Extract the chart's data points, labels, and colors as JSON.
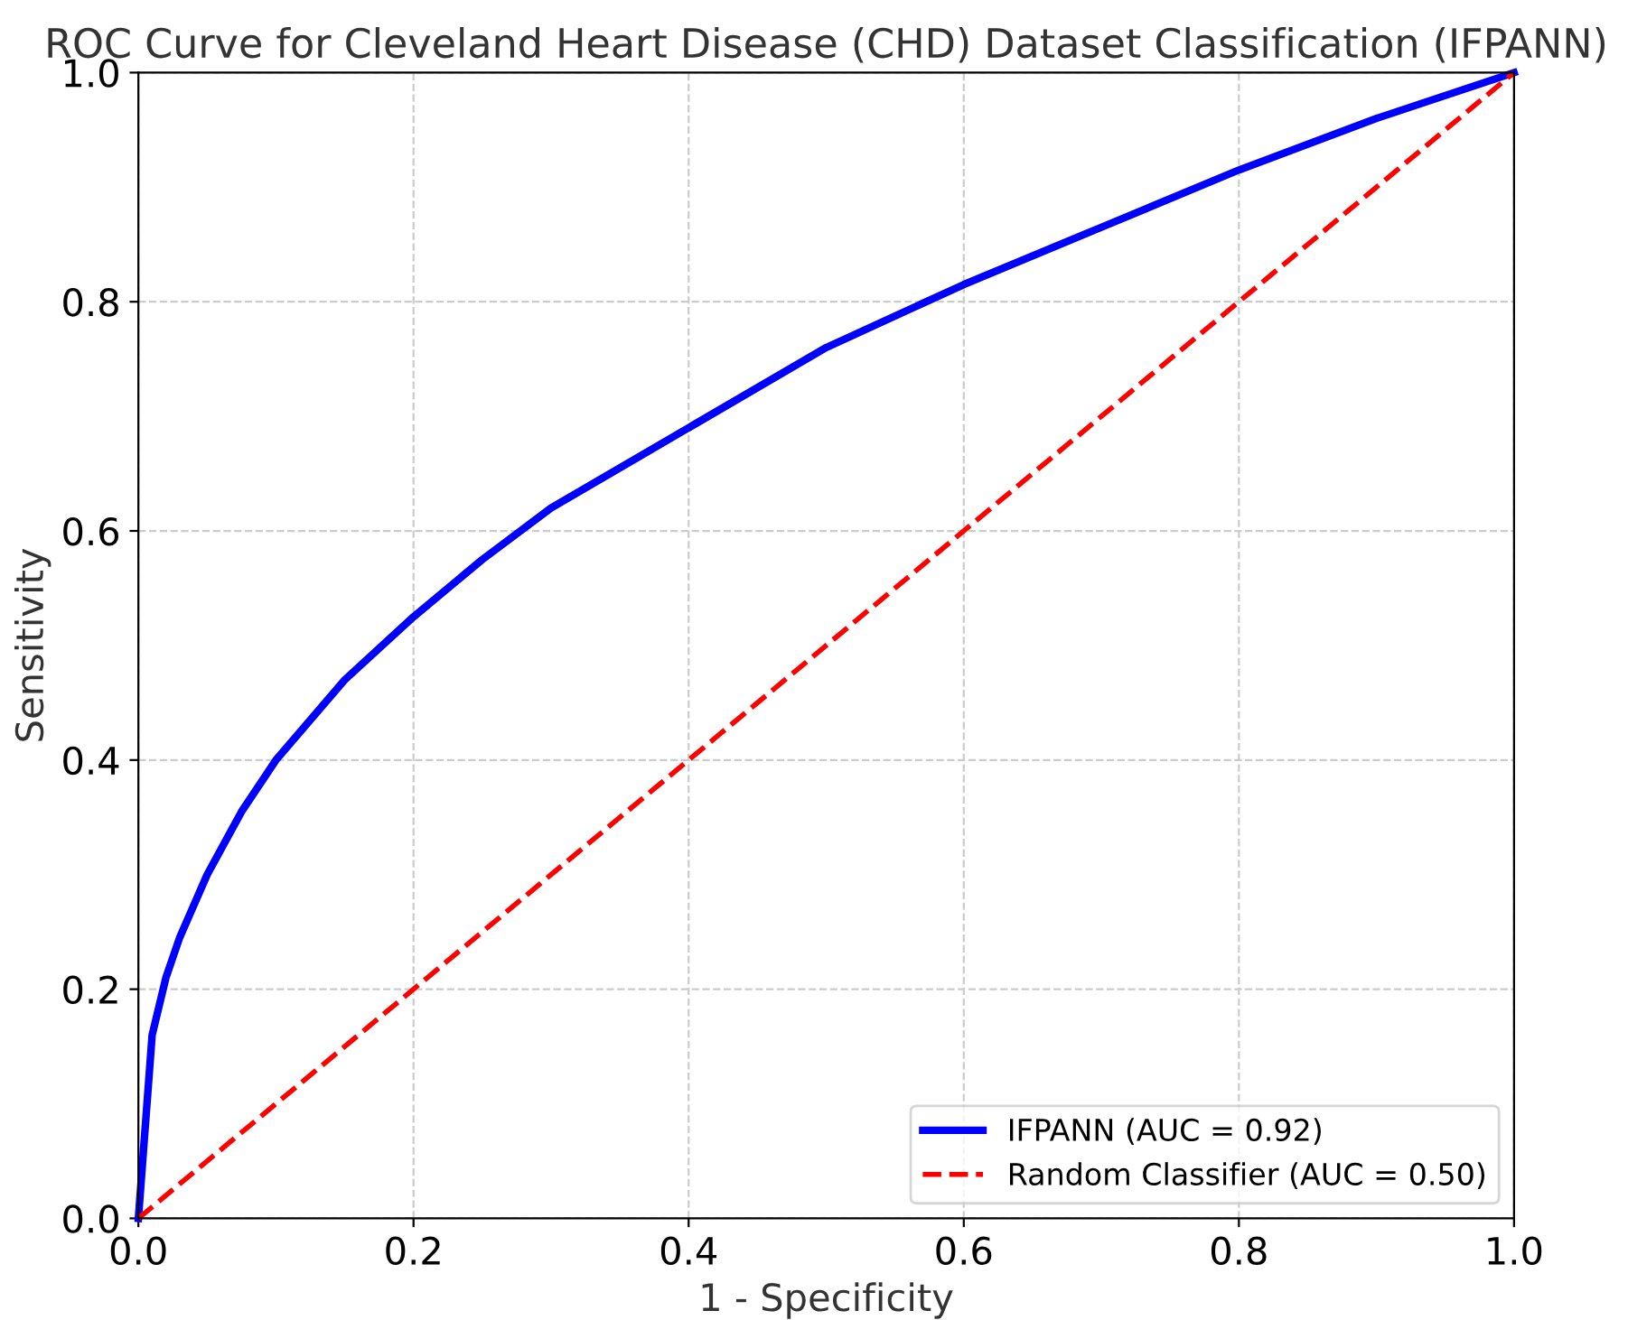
{
  "chart_data": {
    "type": "line",
    "title": "ROC Curve for Cleveland Heart Disease (CHD) Dataset Classification (IFPANN)",
    "xlabel": "1 - Specificity",
    "ylabel": "Sensitivity",
    "series": [
      {
        "name": "IFPANN (AUC = 0.92)",
        "color": "#0000ff",
        "line_style": "solid",
        "x": [
          0,
          0.01,
          0.02,
          0.03,
          0.05,
          0.075,
          0.1,
          0.15,
          0.2,
          0.25,
          0.3,
          0.4,
          0.5,
          0.6,
          0.7,
          0.8,
          0.9,
          1.0
        ],
        "values": [
          0,
          0.16,
          0.21,
          0.245,
          0.3,
          0.355,
          0.4,
          0.47,
          0.525,
          0.575,
          0.62,
          0.69,
          0.76,
          0.815,
          0.865,
          0.915,
          0.96,
          1.0
        ]
      },
      {
        "name": "Random Classifier (AUC = 0.50)",
        "color": "#ff0000",
        "line_style": "dashed",
        "x": [
          0,
          1
        ],
        "values": [
          0,
          1
        ]
      }
    ],
    "xlim": [
      0,
      1
    ],
    "ylim": [
      0,
      1
    ],
    "xticks": [
      {
        "value": 0,
        "label": "0.0"
      },
      {
        "value": 0.2,
        "label": "0.2"
      },
      {
        "value": 0.4,
        "label": "0.4"
      },
      {
        "value": 0.6,
        "label": "0.6"
      },
      {
        "value": 0.8,
        "label": "0.8"
      },
      {
        "value": 1,
        "label": "1.0"
      }
    ],
    "yticks": [
      {
        "value": 0,
        "label": "0.0"
      },
      {
        "value": 0.2,
        "label": "0.2"
      },
      {
        "value": 0.4,
        "label": "0.4"
      },
      {
        "value": 0.6,
        "label": "0.6"
      },
      {
        "value": 0.8,
        "label": "0.8"
      },
      {
        "value": 1,
        "label": "1.0"
      }
    ],
    "grid": true,
    "legend": "lower right"
  }
}
